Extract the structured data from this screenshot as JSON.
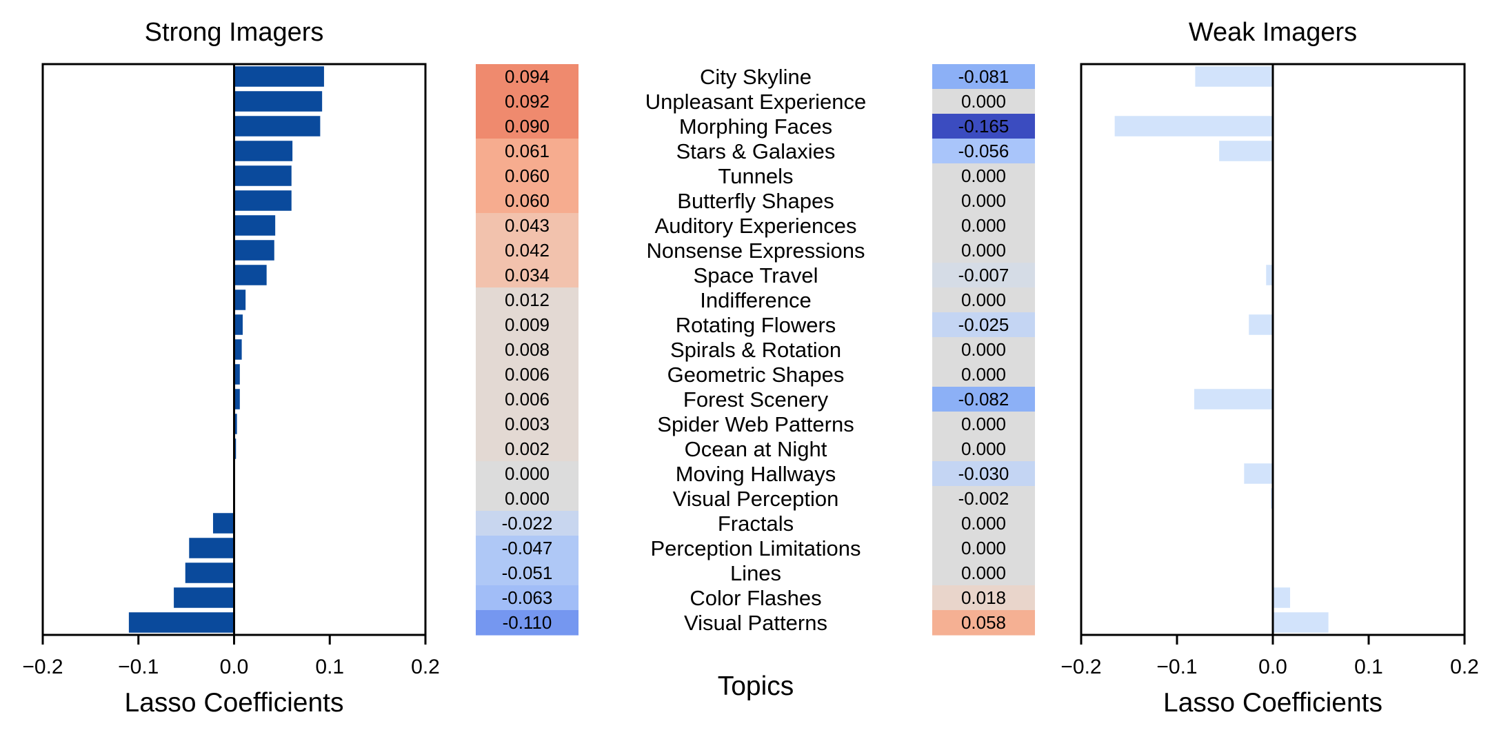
{
  "chart_data": {
    "type": "bar",
    "orientation": "horizontal",
    "categories": [
      "City Skyline",
      "Unpleasant Experience",
      "Morphing Faces",
      "Stars & Galaxies",
      "Tunnels",
      "Butterfly Shapes",
      "Auditory Experiences",
      "Nonsense Expressions",
      "Space Travel",
      "Indifference",
      "Rotating Flowers",
      "Spirals & Rotation",
      "Geometric Shapes",
      "Forest Scenery",
      "Spider Web Patterns",
      "Ocean at Night",
      "Moving Hallways",
      "Visual Perception",
      "Fractals",
      "Perception Limitations",
      "Lines",
      "Color Flashes",
      "Visual Patterns"
    ],
    "category_axis_label": "Topics",
    "xlabel": "Lasso Coefficients",
    "xlim": [
      -0.2,
      0.2
    ],
    "xticks": [
      "−0.2",
      "−0.1",
      "0.0",
      "0.1",
      "0.2"
    ],
    "xtick_values": [
      -0.2,
      -0.1,
      0.0,
      0.1,
      0.2
    ],
    "series": [
      {
        "title": "Strong Imagers",
        "color": "#0a4a9c",
        "values": [
          0.094,
          0.092,
          0.09,
          0.061,
          0.06,
          0.06,
          0.043,
          0.042,
          0.034,
          0.012,
          0.009,
          0.008,
          0.006,
          0.006,
          0.003,
          0.002,
          0.0,
          0.0,
          -0.022,
          -0.047,
          -0.051,
          -0.063,
          -0.11
        ],
        "labels": [
          "0.094",
          "0.092",
          "0.090",
          "0.061",
          "0.060",
          "0.060",
          "0.043",
          "0.042",
          "0.034",
          "0.012",
          "0.009",
          "0.008",
          "0.006",
          "0.006",
          "0.003",
          "0.002",
          "0.000",
          "0.000",
          "-0.022",
          "-0.047",
          "-0.051",
          "-0.063",
          "-0.110"
        ]
      },
      {
        "title": "Weak Imagers",
        "color": "#d2e3fb",
        "values": [
          -0.081,
          0.0,
          -0.165,
          -0.056,
          0.0,
          0.0,
          0.0,
          0.0,
          -0.007,
          0.0,
          -0.025,
          0.0,
          0.0,
          -0.082,
          0.0,
          0.0,
          -0.03,
          -0.002,
          0.0,
          0.0,
          0.0,
          0.018,
          0.058
        ],
        "labels": [
          "-0.081",
          "0.000",
          "-0.165",
          "-0.056",
          "0.000",
          "0.000",
          "0.000",
          "0.000",
          "-0.007",
          "0.000",
          "-0.025",
          "0.000",
          "0.000",
          "-0.082",
          "0.000",
          "0.000",
          "-0.030",
          "-0.002",
          "0.000",
          "0.000",
          "0.000",
          "0.018",
          "0.058"
        ]
      }
    ],
    "heatmap_colors": {
      "strong": [
        "#ef8a6e",
        "#ef8a6e",
        "#ef8a6e",
        "#f6ac8f",
        "#f6ac8f",
        "#f6ac8f",
        "#f2c2ad",
        "#f2c2ad",
        "#f2c2ad",
        "#e3d9d3",
        "#e3d9d3",
        "#e3d9d3",
        "#e3d9d3",
        "#e3d9d3",
        "#e3d9d3",
        "#e3d9d3",
        "#dcdcdc",
        "#dcdcdc",
        "#c8d6ef",
        "#afc8f6",
        "#afc8f6",
        "#a1bdf7",
        "#7597f0"
      ],
      "weak": [
        "#8cb0f6",
        "#dcdcdc",
        "#3b4cc0",
        "#a9c5fa",
        "#dcdcdc",
        "#dcdcdc",
        "#dcdcdc",
        "#dcdcdc",
        "#d5dce6",
        "#dcdcdc",
        "#c4d5f3",
        "#dcdcdc",
        "#dcdcdc",
        "#8cb0f6",
        "#dcdcdc",
        "#dcdcdc",
        "#c4d5f3",
        "#dcdcdc",
        "#dcdcdc",
        "#dcdcdc",
        "#dcdcdc",
        "#e9d5cb",
        "#f5b093"
      ]
    }
  }
}
